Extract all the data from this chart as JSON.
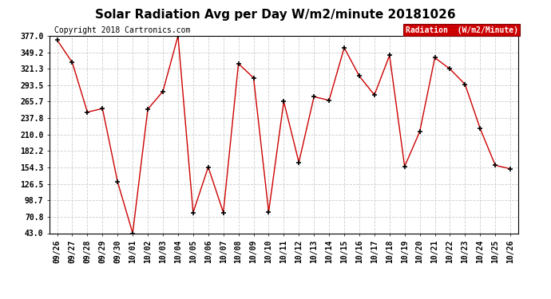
{
  "title": "Solar Radiation Avg per Day W/m2/minute 20181026",
  "copyright_text": "Copyright 2018 Cartronics.com",
  "legend_label": "Radiation  (W/m2/Minute)",
  "dates": [
    "09/26",
    "09/27",
    "09/28",
    "09/29",
    "09/30",
    "10/01",
    "10/02",
    "10/03",
    "10/04",
    "10/05",
    "10/06",
    "10/07",
    "10/08",
    "10/09",
    "10/10",
    "10/11",
    "10/12",
    "10/13",
    "10/14",
    "10/15",
    "10/16",
    "10/17",
    "10/18",
    "10/19",
    "10/20",
    "10/21",
    "10/22",
    "10/23",
    "10/24",
    "10/25",
    "10/26"
  ],
  "values": [
    370.0,
    332.0,
    248.0,
    254.0,
    130.0,
    43.0,
    253.0,
    283.0,
    377.0,
    78.0,
    155.0,
    78.0,
    330.0,
    306.0,
    79.0,
    266.0,
    163.0,
    274.0,
    268.0,
    357.0,
    309.0,
    277.0,
    344.0,
    156.0,
    215.0,
    340.0,
    321.0,
    295.0,
    220.0,
    158.0,
    152.0
  ],
  "ylim_min": 43.0,
  "ylim_max": 377.0,
  "yticks": [
    43.0,
    70.8,
    98.7,
    126.5,
    154.3,
    182.2,
    210.0,
    237.8,
    265.7,
    293.5,
    321.3,
    349.2,
    377.0
  ],
  "line_color": "#cc0000",
  "marker": "+",
  "marker_color": "#000000",
  "marker_size": 5,
  "bg_color": "#ffffff",
  "grid_color": "#cccccc",
  "legend_bg": "#cc0000",
  "legend_text_color": "#ffffff",
  "title_fontsize": 11,
  "tick_fontsize": 7,
  "copyright_fontsize": 7,
  "fig_width": 6.9,
  "fig_height": 3.75,
  "dpi": 100
}
